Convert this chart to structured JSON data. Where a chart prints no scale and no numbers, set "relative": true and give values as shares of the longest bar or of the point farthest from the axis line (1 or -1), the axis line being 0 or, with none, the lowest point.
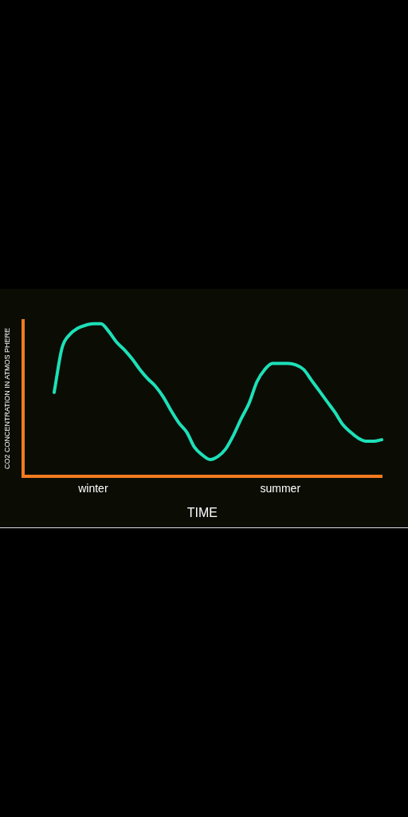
{
  "chart_data": {
    "type": "line",
    "relative": true,
    "xlabel": "TIME",
    "ylabel": "CO2 CONCENTRATION IN ATMOS PHERE",
    "categories": [
      null,
      null,
      null,
      null,
      null,
      null,
      null,
      null,
      null,
      "winter",
      null,
      null,
      null,
      null,
      null,
      null,
      null,
      null,
      null,
      null,
      null,
      null,
      null,
      null,
      null,
      null,
      null,
      null,
      null,
      null,
      null,
      null,
      null,
      "summer",
      null,
      null,
      null,
      null,
      null,
      null,
      null,
      null,
      null,
      null,
      null,
      null,
      null
    ],
    "series": [
      {
        "color": "#1de0b8",
        "values": [
          null,
          null,
          null,
          null,
          0.55,
          0.84,
          0.93,
          0.97,
          0.99,
          1.0,
          1.0,
          0.95,
          0.88,
          0.83,
          0.77,
          0.7,
          0.64,
          0.59,
          0.52,
          0.43,
          0.35,
          0.29,
          0.19,
          0.14,
          0.11,
          0.13,
          0.18,
          0.27,
          0.38,
          0.48,
          0.62,
          0.7,
          0.74,
          0.74,
          0.74,
          0.73,
          0.7,
          0.63,
          0.56,
          0.49,
          0.42,
          0.34,
          0.29,
          0.25,
          0.23,
          0.23,
          0.24
        ]
      }
    ],
    "grid": false,
    "legend": false,
    "marker": "none",
    "line_style": "solid"
  }
}
